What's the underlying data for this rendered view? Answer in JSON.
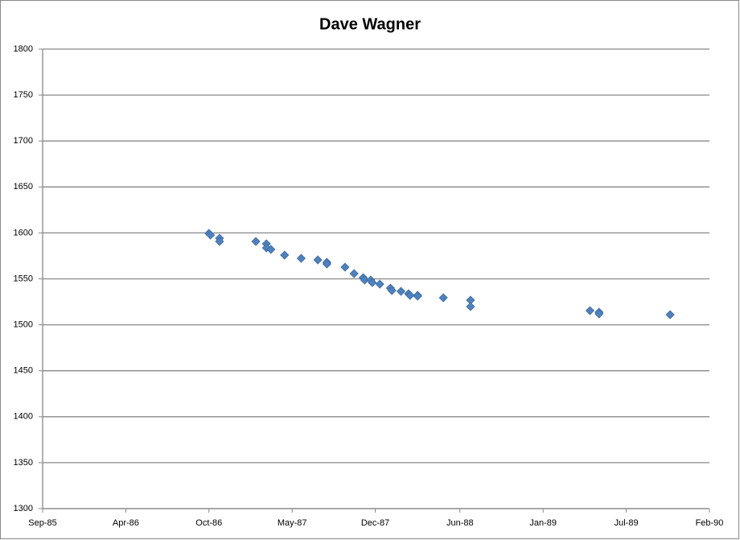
{
  "chart_data": {
    "type": "scatter",
    "title": "Dave Wagner",
    "x": [
      1986.77,
      1986.78,
      1986.84,
      1986.84,
      1987.08,
      1987.15,
      1987.15,
      1987.18,
      1987.27,
      1987.38,
      1987.49,
      1987.55,
      1987.55,
      1987.67,
      1987.73,
      1987.79,
      1987.8,
      1987.84,
      1987.85,
      1987.9,
      1987.97,
      1987.98,
      1988.04,
      1988.09,
      1988.1,
      1988.15,
      1988.15,
      1988.32,
      1988.5,
      1988.5,
      1989.29,
      1989.35,
      1989.35,
      1989.82
    ],
    "values": [
      1599.5,
      1597.7,
      1594.2,
      1590.7,
      1590.7,
      1588.1,
      1583.7,
      1582,
      1575.8,
      1572.3,
      1570.6,
      1568,
      1566.2,
      1562.7,
      1555.7,
      1551.3,
      1548.7,
      1548.7,
      1546,
      1544.3,
      1539.9,
      1537.3,
      1536.4,
      1533.8,
      1532,
      1532,
      1531.2,
      1529.4,
      1526.8,
      1519.8,
      1515.4,
      1513.7,
      1511.9,
      1511
    ],
    "color": "#4f81bd",
    "xlim": [
      1985.67,
      1990.08
    ],
    "xticks": [
      {
        "value": 1985.67,
        "label": "Sep-85"
      },
      {
        "value": 1986.22,
        "label": "Apr-86"
      },
      {
        "value": 1986.77,
        "label": "Oct-86"
      },
      {
        "value": 1987.32,
        "label": "May-87"
      },
      {
        "value": 1987.87,
        "label": "Dec-87"
      },
      {
        "value": 1988.43,
        "label": "Jun-88"
      },
      {
        "value": 1988.98,
        "label": "Jan-89"
      },
      {
        "value": 1989.53,
        "label": "Jul-89"
      },
      {
        "value": 1990.08,
        "label": "Feb-90"
      }
    ],
    "ylim": [
      1300,
      1800
    ],
    "yticks": [
      1300,
      1350,
      1400,
      1450,
      1500,
      1550,
      1600,
      1650,
      1700,
      1750,
      1800
    ],
    "grid": true
  }
}
